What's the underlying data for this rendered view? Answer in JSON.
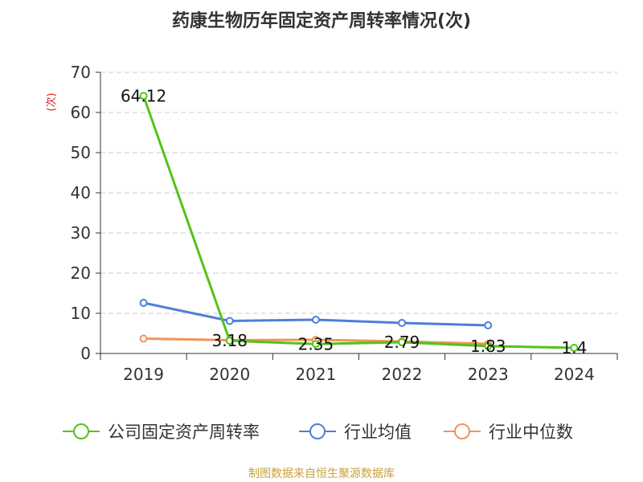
{
  "chart_data": {
    "type": "line",
    "title": "药康生物历年固定资产周转率情况(次)",
    "ylabel": "(次)",
    "xlabel": "",
    "categories": [
      "2019",
      "2020",
      "2021",
      "2022",
      "2023",
      "2024"
    ],
    "ylim": [
      0,
      70
    ],
    "yticks": [
      "0",
      "10",
      "20",
      "30",
      "40",
      "50",
      "60",
      "70"
    ],
    "grid": true,
    "legend_position": "bottom",
    "series": [
      {
        "name": "公司固定资产周转率",
        "color": "#52c41a",
        "values": [
          64.12,
          3.18,
          2.35,
          2.79,
          1.83,
          1.4
        ],
        "labels": [
          "64.12",
          "3.18",
          "2.35",
          "2.79",
          "1.83",
          "1.4"
        ]
      },
      {
        "name": "行业均值",
        "color": "#4e7fd8",
        "values": [
          12.6,
          8.1,
          8.4,
          7.6,
          7.0,
          null
        ]
      },
      {
        "name": "行业中位数",
        "color": "#f4925a",
        "values": [
          3.7,
          3.3,
          3.4,
          3.0,
          2.4,
          null
        ]
      }
    ]
  },
  "source": "制图数据来自恒生聚源数据库"
}
